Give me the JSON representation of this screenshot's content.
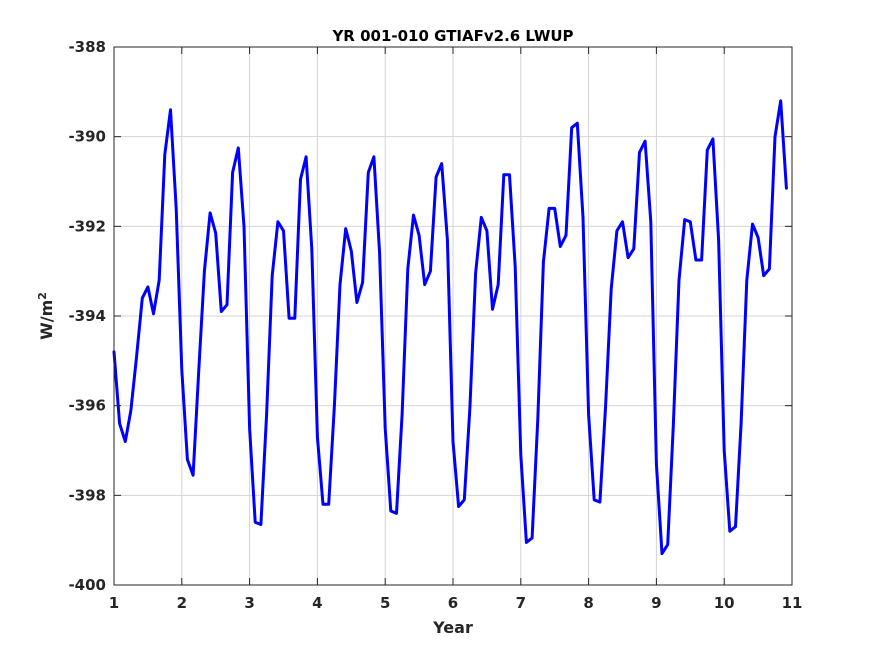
{
  "chart_data": {
    "type": "line",
    "title": "YR 001-010 GTIAFv2.6 LWUP",
    "xlabel": "Year",
    "ylabel": "W/m",
    "ylabel_superscript": "2",
    "xlim": [
      1,
      11
    ],
    "ylim": [
      -400,
      -388
    ],
    "xticks": [
      1,
      2,
      3,
      4,
      5,
      6,
      7,
      8,
      9,
      10,
      11
    ],
    "yticks": [
      -400,
      -398,
      -396,
      -394,
      -392,
      -390,
      -388
    ],
    "grid": true,
    "series": [
      {
        "color": "#0000ff",
        "x": [
          1.0,
          1.083,
          1.167,
          1.25,
          1.333,
          1.417,
          1.5,
          1.583,
          1.667,
          1.75,
          1.833,
          1.917,
          2.0,
          2.083,
          2.167,
          2.25,
          2.333,
          2.417,
          2.5,
          2.583,
          2.667,
          2.75,
          2.833,
          2.917,
          3.0,
          3.083,
          3.167,
          3.25,
          3.333,
          3.417,
          3.5,
          3.583,
          3.667,
          3.75,
          3.833,
          3.917,
          4.0,
          4.083,
          4.167,
          4.25,
          4.333,
          4.417,
          4.5,
          4.583,
          4.667,
          4.75,
          4.833,
          4.917,
          5.0,
          5.083,
          5.167,
          5.25,
          5.333,
          5.417,
          5.5,
          5.583,
          5.667,
          5.75,
          5.833,
          5.917,
          6.0,
          6.083,
          6.167,
          6.25,
          6.333,
          6.417,
          6.5,
          6.583,
          6.667,
          6.75,
          6.833,
          6.917,
          7.0,
          7.083,
          7.167,
          7.25,
          7.333,
          7.417,
          7.5,
          7.583,
          7.667,
          7.75,
          7.833,
          7.917,
          8.0,
          8.083,
          8.167,
          8.25,
          8.333,
          8.417,
          8.5,
          8.583,
          8.667,
          8.75,
          8.833,
          8.917,
          9.0,
          9.083,
          9.167,
          9.25,
          9.333,
          9.417,
          9.5,
          9.583,
          9.667,
          9.75,
          9.833,
          9.917,
          10.0,
          10.083,
          10.167,
          10.25,
          10.333,
          10.417,
          10.5,
          10.583,
          10.667,
          10.75,
          10.833,
          10.917
        ],
        "y": [
          -394.8,
          -396.4,
          -396.8,
          -396.1,
          -394.9,
          -393.6,
          -393.35,
          -393.95,
          -393.2,
          -390.4,
          -389.4,
          -391.6,
          -395.2,
          -397.2,
          -397.55,
          -395.2,
          -393.0,
          -391.7,
          -392.15,
          -393.9,
          -393.75,
          -390.8,
          -390.25,
          -392.0,
          -396.5,
          -398.6,
          -398.65,
          -396.2,
          -393.1,
          -391.9,
          -392.1,
          -394.05,
          -394.05,
          -390.95,
          -390.45,
          -392.5,
          -396.7,
          -398.2,
          -398.2,
          -396.0,
          -393.3,
          -392.05,
          -392.55,
          -393.7,
          -393.25,
          -390.8,
          -390.45,
          -392.6,
          -396.5,
          -398.35,
          -398.4,
          -396.2,
          -392.95,
          -391.75,
          -392.2,
          -393.3,
          -393.0,
          -390.9,
          -390.6,
          -392.3,
          -396.8,
          -398.25,
          -398.1,
          -396.05,
          -393.05,
          -391.8,
          -392.1,
          -393.85,
          -393.3,
          -390.85,
          -390.85,
          -392.9,
          -397.1,
          -399.05,
          -398.95,
          -396.3,
          -392.8,
          -391.6,
          -391.6,
          -392.45,
          -392.2,
          -389.8,
          -389.7,
          -391.8,
          -396.2,
          -398.1,
          -398.15,
          -396.05,
          -393.4,
          -392.1,
          -391.9,
          -392.7,
          -392.5,
          -390.35,
          -390.1,
          -391.9,
          -397.3,
          -399.3,
          -399.1,
          -396.4,
          -393.2,
          -391.85,
          -391.9,
          -392.75,
          -392.75,
          -390.3,
          -390.05,
          -392.3,
          -397.0,
          -398.8,
          -398.7,
          -396.4,
          -393.2,
          -391.95,
          -392.25,
          -393.1,
          -392.95,
          -390.0,
          -389.2,
          -391.15
        ]
      }
    ]
  }
}
